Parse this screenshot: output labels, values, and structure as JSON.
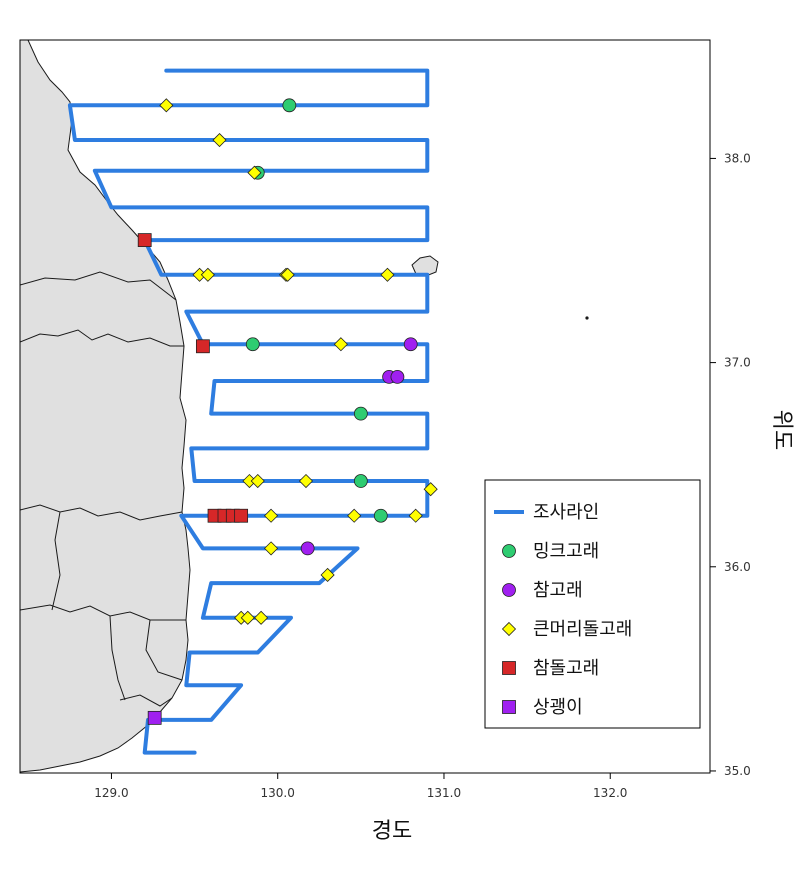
{
  "chart_data": {
    "type": "scatter",
    "xlabel": "경도",
    "ylabel": "위도",
    "xlim": [
      128.45,
      132.6
    ],
    "ylim": [
      34.99,
      38.58
    ],
    "xticks": [
      129.0,
      130.0,
      131.0,
      132.0
    ],
    "yticks": [
      35.0,
      36.0,
      37.0,
      38.0
    ],
    "xtick_labels": [
      "129.0",
      "130.0",
      "131.0",
      "132.0"
    ],
    "ytick_labels": [
      "35.0",
      "36.0",
      "37.0",
      "38.0"
    ],
    "grid": false,
    "legend_position": "bottom-right",
    "colors": {
      "track": "#2E7DE0",
      "minke": "#2ECC71",
      "common": "#A020F0",
      "long_beaked": "#FFFF00",
      "bottlenose": "#D62728",
      "finless": "#A020F0",
      "land": "#E0E0E0"
    },
    "series": [
      {
        "name": "조사라인",
        "kind": "line",
        "points": [
          [
            129.33,
            38.43
          ],
          [
            130.9,
            38.43
          ],
          [
            130.9,
            38.26
          ],
          [
            128.75,
            38.26
          ],
          [
            128.78,
            38.09
          ],
          [
            130.9,
            38.09
          ],
          [
            130.9,
            37.94
          ],
          [
            128.9,
            37.94
          ],
          [
            129.0,
            37.76
          ],
          [
            130.9,
            37.76
          ],
          [
            130.9,
            37.6
          ],
          [
            129.2,
            37.6
          ],
          [
            129.3,
            37.43
          ],
          [
            130.9,
            37.43
          ],
          [
            130.9,
            37.25
          ],
          [
            129.45,
            37.25
          ],
          [
            129.55,
            37.09
          ],
          [
            130.9,
            37.09
          ],
          [
            130.9,
            36.91
          ],
          [
            129.62,
            36.91
          ],
          [
            129.6,
            36.75
          ],
          [
            130.9,
            36.75
          ],
          [
            130.9,
            36.58
          ],
          [
            129.48,
            36.58
          ],
          [
            129.5,
            36.42
          ],
          [
            130.9,
            36.42
          ],
          [
            130.9,
            36.25
          ],
          [
            129.42,
            36.25
          ],
          [
            129.55,
            36.09
          ],
          [
            130.48,
            36.09
          ],
          [
            130.25,
            35.92
          ],
          [
            129.6,
            35.92
          ],
          [
            129.55,
            35.75
          ],
          [
            130.08,
            35.75
          ],
          [
            129.88,
            35.58
          ],
          [
            129.47,
            35.58
          ],
          [
            129.45,
            35.42
          ],
          [
            129.78,
            35.42
          ],
          [
            129.6,
            35.25
          ],
          [
            129.22,
            35.25
          ],
          [
            129.2,
            35.09
          ],
          [
            129.5,
            35.09
          ]
        ]
      },
      {
        "name": "밍크고래",
        "kind": "marker",
        "marker": "circle",
        "points": [
          [
            130.07,
            38.26
          ],
          [
            129.88,
            37.93
          ],
          [
            129.85,
            37.09
          ],
          [
            130.5,
            36.75
          ],
          [
            130.5,
            36.42
          ],
          [
            130.62,
            36.25
          ]
        ]
      },
      {
        "name": "참고래",
        "kind": "marker",
        "marker": "circle",
        "points": [
          [
            130.8,
            37.09
          ],
          [
            130.67,
            36.93
          ],
          [
            130.72,
            36.93
          ],
          [
            130.18,
            36.09
          ]
        ]
      },
      {
        "name": "큰머리돌고래",
        "kind": "marker",
        "marker": "diamond",
        "points": [
          [
            129.33,
            38.26
          ],
          [
            129.65,
            38.09
          ],
          [
            129.86,
            37.93
          ],
          [
            129.53,
            37.43
          ],
          [
            129.58,
            37.43
          ],
          [
            130.05,
            37.43
          ],
          [
            130.06,
            37.43
          ],
          [
            130.66,
            37.43
          ],
          [
            130.38,
            37.09
          ],
          [
            129.83,
            36.42
          ],
          [
            129.88,
            36.42
          ],
          [
            130.17,
            36.42
          ],
          [
            130.92,
            36.38
          ],
          [
            129.96,
            36.25
          ],
          [
            130.46,
            36.25
          ],
          [
            130.83,
            36.25
          ],
          [
            129.96,
            36.09
          ],
          [
            130.3,
            35.96
          ],
          [
            129.78,
            35.75
          ],
          [
            129.82,
            35.75
          ],
          [
            129.9,
            35.75
          ]
        ]
      },
      {
        "name": "참돌고래",
        "kind": "marker",
        "marker": "square",
        "points": [
          [
            129.2,
            37.6
          ],
          [
            129.55,
            37.08
          ],
          [
            129.62,
            36.25
          ],
          [
            129.68,
            36.25
          ],
          [
            129.73,
            36.25
          ],
          [
            129.78,
            36.25
          ]
        ]
      },
      {
        "name": "상괭이",
        "kind": "marker",
        "marker": "square",
        "points": [
          [
            129.26,
            35.26
          ]
        ]
      }
    ]
  }
}
